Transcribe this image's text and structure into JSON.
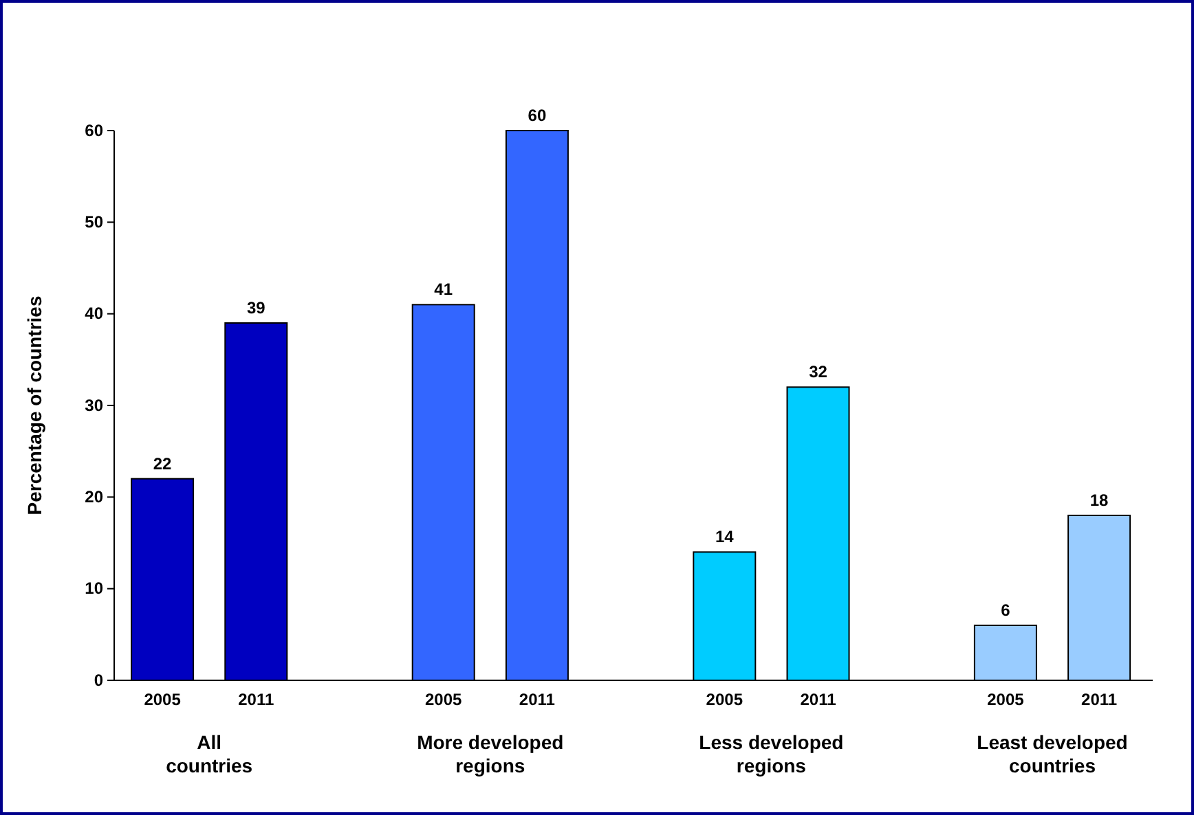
{
  "chart_data": {
    "type": "bar",
    "ylabel": "Percentage of countries",
    "categories": [
      "2005",
      "2011",
      "2005",
      "2011",
      "2005",
      "2011",
      "2005",
      "2011"
    ],
    "values": [
      22,
      39,
      41,
      60,
      14,
      32,
      6,
      18
    ],
    "colors": [
      "#0000c0",
      "#0000c0",
      "#3366ff",
      "#3366ff",
      "#00ccff",
      "#00ccff",
      "#99ccff",
      "#99ccff"
    ],
    "ylim": [
      0,
      60
    ],
    "yticks": [
      0,
      10,
      20,
      30,
      40,
      50,
      60
    ],
    "data_labels": true,
    "grid": false,
    "annotations": [
      "All\ncountries",
      "More developed\nregions",
      "Less developed\nregions",
      "Least developed\ncountries"
    ]
  }
}
